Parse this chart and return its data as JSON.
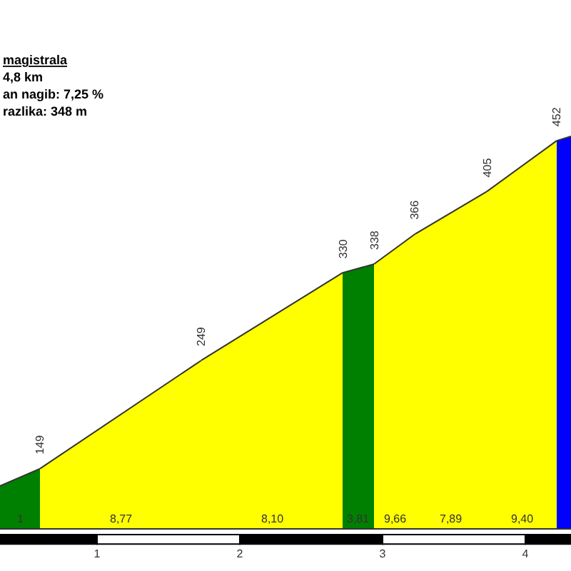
{
  "chart_data": {
    "type": "area",
    "title": "magistrala",
    "subtitle": "4,8 km\nan nagib: 7,25 %\nrazlika: 348 m",
    "annotations": [
      "1",
      "8,77",
      "8,10",
      "3,81",
      "9,66",
      "7,89",
      "9,40"
    ],
    "xlim": [
      0.32,
      4.32
    ],
    "xticks": [
      1,
      2,
      3,
      4
    ],
    "ylim": [
      94,
      582
    ],
    "tick_labels": "x",
    "series": [
      {
        "color": "#008000",
        "x": [
          0.32,
          0.6
        ],
        "values": [
          133,
          149
        ],
        "value_labels": [
          null,
          "149"
        ]
      },
      {
        "color": "#ffff00",
        "x": [
          0.6,
          1.73
        ],
        "values": [
          149,
          249
        ],
        "value_labels": [
          null,
          "249"
        ]
      },
      {
        "color": "#ffff00",
        "x": [
          1.73,
          2.72
        ],
        "values": [
          249,
          330
        ],
        "value_labels": [
          null,
          "330"
        ]
      },
      {
        "color": "#008000",
        "x": [
          2.72,
          2.94
        ],
        "values": [
          330,
          338
        ],
        "value_labels": [
          null,
          "338"
        ]
      },
      {
        "color": "#ffff00",
        "x": [
          2.94,
          3.23
        ],
        "values": [
          338,
          366
        ],
        "value_labels": [
          null,
          "366"
        ]
      },
      {
        "color": "#ffff00",
        "x": [
          3.23,
          3.73
        ],
        "values": [
          366,
          405
        ],
        "value_labels": [
          null,
          "405"
        ]
      },
      {
        "color": "#ffff00",
        "x": [
          3.73,
          4.22
        ],
        "values": [
          405,
          452
        ],
        "value_labels": [
          null,
          "452"
        ]
      },
      {
        "color": "#0000ff",
        "x": [
          4.22,
          4.32
        ],
        "values": [
          452,
          456
        ],
        "value_labels": [
          null,
          null
        ]
      }
    ]
  }
}
